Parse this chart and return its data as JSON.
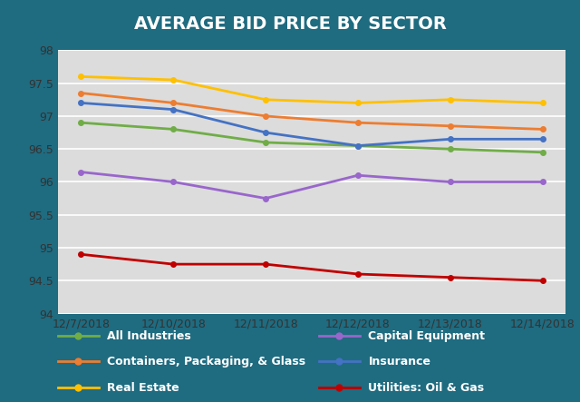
{
  "title": "AVERAGE BID PRICE BY SECTOR",
  "x_labels": [
    "12/7/2018",
    "12/10/2018",
    "12/11/2018",
    "12/12/2018",
    "12/13/2018",
    "12/14/2018"
  ],
  "series": [
    {
      "name": "All Industries",
      "color": "#70AD47",
      "values": [
        96.9,
        96.8,
        96.6,
        96.55,
        96.5,
        96.45
      ]
    },
    {
      "name": "Capital Equipment",
      "color": "#9966CC",
      "values": [
        96.15,
        96.0,
        95.75,
        96.1,
        96.0,
        96.0
      ]
    },
    {
      "name": "Containers, Packaging, & Glass",
      "color": "#ED7D31",
      "values": [
        97.35,
        97.2,
        97.0,
        96.9,
        96.85,
        96.8
      ]
    },
    {
      "name": "Insurance",
      "color": "#4472C4",
      "values": [
        97.2,
        97.1,
        96.75,
        96.55,
        96.65,
        96.65
      ]
    },
    {
      "name": "Real Estate",
      "color": "#FFC000",
      "values": [
        97.6,
        97.55,
        97.25,
        97.2,
        97.25,
        97.2
      ]
    },
    {
      "name": "Utilities: Oil & Gas",
      "color": "#C00000",
      "values": [
        94.9,
        94.75,
        94.75,
        94.6,
        94.55,
        94.5
      ]
    }
  ],
  "ylim": [
    94.0,
    98.0
  ],
  "yticks": [
    94.0,
    94.5,
    95.0,
    95.5,
    96.0,
    96.5,
    97.0,
    97.5,
    98.0
  ],
  "plot_bg_color": "#DCDCDC",
  "outer_bg_color": "#1F6B80",
  "title_color": "white",
  "title_fontsize": 14,
  "grid_color": "#FFFFFF",
  "legend_text_color": "white",
  "legend_fontsize": 9,
  "tick_label_color": "#333333",
  "tick_fontsize": 9
}
